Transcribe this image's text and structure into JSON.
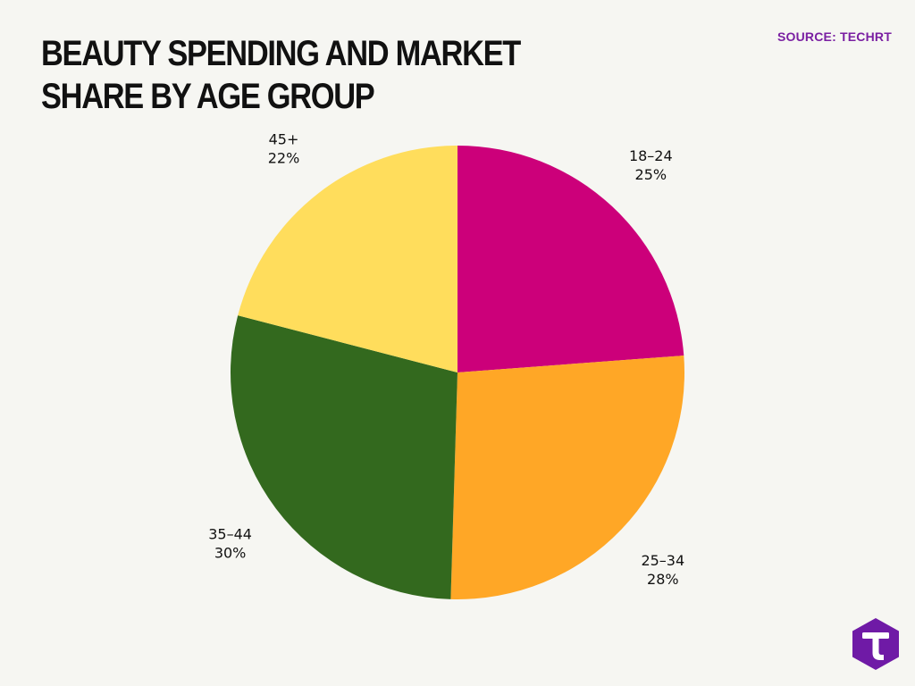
{
  "header": {
    "title": "BEAUTY SPENDING AND MARKET SHARE BY AGE GROUP",
    "source": "SOURCE: TECHRT"
  },
  "colors": {
    "background": "#f6f6f2",
    "source_text": "#7a1fa2",
    "logo_fill": "#6f1aa6"
  },
  "logo": {
    "icon": "techrt-hexagon-logo",
    "letter": "T"
  },
  "chart_data": {
    "type": "pie",
    "title": "BEAUTY SPENDING AND MARKET SHARE BY AGE GROUP",
    "labels": [
      "18–24",
      "25–34",
      "35–44",
      "45+"
    ],
    "values": [
      25,
      28,
      30,
      22
    ],
    "display_values": [
      "25%",
      "28%",
      "30%",
      "22%"
    ],
    "colors": [
      "#cc007a",
      "#ffa726",
      "#33691e",
      "#ffdd5c"
    ],
    "start": "top",
    "direction": "clockwise",
    "legend": "none",
    "labels_position": "outside"
  }
}
